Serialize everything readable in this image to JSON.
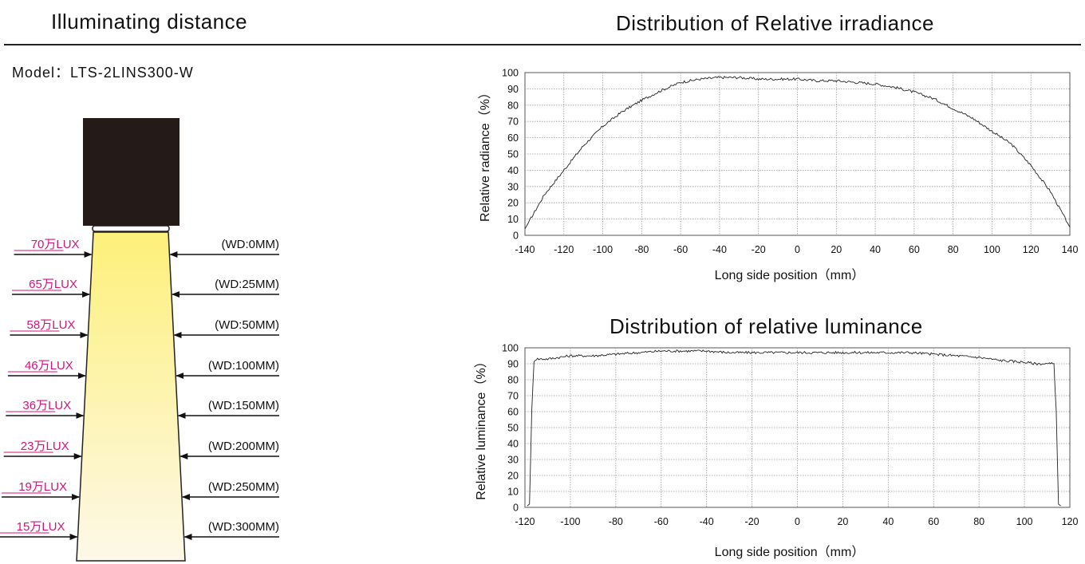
{
  "header": {
    "left_title": "Illuminating distance",
    "right_title": "Distribution of Relative irradiance",
    "model": "Model：LTS-2LINS300-W"
  },
  "distance_diagram": {
    "beam_color_top": "#fdf07a",
    "beam_color_bottom": "#fdf8e8",
    "lux_color": "#d4147a",
    "rows": [
      {
        "lux": "70万LUX",
        "wd": "(WD:0MM)"
      },
      {
        "lux": "65万LUX",
        "wd": "(WD:25MM)"
      },
      {
        "lux": "58万LUX",
        "wd": "(WD:50MM)"
      },
      {
        "lux": "46万LUX",
        "wd": "(WD:100MM)"
      },
      {
        "lux": "36万LUX",
        "wd": "(WD:150MM)"
      },
      {
        "lux": "23万LUX",
        "wd": "(WD:200MM)"
      },
      {
        "lux": "19万LUX",
        "wd": "(WD:250MM)"
      },
      {
        "lux": "15万LUX",
        "wd": "(WD:300MM)"
      }
    ]
  },
  "chart_data": [
    {
      "type": "line",
      "title": "Distribution of Relative irradiance",
      "xlabel": "Long side position（mm）",
      "ylabel": "Relative radiance（%）",
      "xlim": [
        -140,
        140
      ],
      "ylim": [
        0,
        100
      ],
      "xticks": [
        -140,
        -120,
        -100,
        -80,
        -60,
        -40,
        -20,
        0,
        20,
        40,
        60,
        80,
        100,
        120,
        140
      ],
      "yticks": [
        0,
        10,
        20,
        30,
        40,
        50,
        60,
        70,
        80,
        90,
        100
      ],
      "grid": true,
      "series": [
        {
          "x": [
            -140,
            -130,
            -120,
            -110,
            -100,
            -90,
            -80,
            -70,
            -60,
            -50,
            -40,
            -30,
            -20,
            -10,
            0,
            10,
            20,
            30,
            40,
            50,
            60,
            70,
            80,
            90,
            100,
            110,
            120,
            130,
            140
          ],
          "y": [
            4,
            25,
            40,
            55,
            67,
            76,
            83,
            89,
            94,
            96,
            97,
            97,
            96,
            96,
            96,
            95,
            95,
            94,
            93,
            91,
            88,
            84,
            78,
            72,
            64,
            56,
            43,
            27,
            5
          ]
        }
      ]
    },
    {
      "type": "line",
      "title": "Distribution of relative luminance",
      "xlabel": "Long side position（mm）",
      "ylabel": "Relative luminance（%）",
      "xlim": [
        -120,
        120
      ],
      "ylim": [
        0,
        100
      ],
      "xticks": [
        -120,
        -100,
        -80,
        -60,
        -40,
        -20,
        0,
        20,
        40,
        60,
        80,
        100,
        120
      ],
      "yticks": [
        0,
        10,
        20,
        30,
        40,
        50,
        60,
        70,
        80,
        90,
        100
      ],
      "grid": true,
      "series": [
        {
          "x": [
            -119,
            -118,
            -117,
            -116,
            -115,
            -110,
            -105,
            -100,
            -90,
            -80,
            -70,
            -60,
            -50,
            -40,
            -30,
            -20,
            -10,
            0,
            10,
            20,
            30,
            40,
            50,
            60,
            70,
            80,
            90,
            100,
            105,
            110,
            113,
            114,
            115,
            116
          ],
          "y": [
            1,
            2,
            60,
            92,
            93,
            93,
            94,
            95,
            95,
            96,
            97,
            98,
            98,
            98,
            97,
            97,
            97,
            97,
            97,
            97,
            97,
            97,
            97,
            96,
            95,
            94,
            92,
            91,
            90,
            90,
            90,
            60,
            2,
            1
          ]
        }
      ]
    }
  ]
}
